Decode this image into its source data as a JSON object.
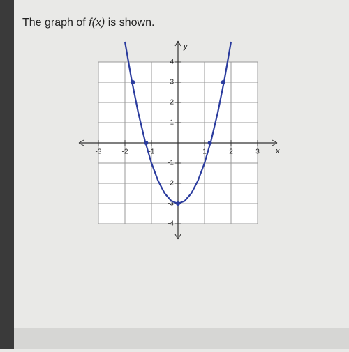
{
  "question": {
    "prefix": "The graph of ",
    "function": "f(x)",
    "suffix": " is shown."
  },
  "chart_data": {
    "type": "line",
    "x_label": "x",
    "y_label": "y",
    "xlim": [
      -3,
      3
    ],
    "ylim": [
      -4,
      4
    ],
    "xticks": [
      -3,
      -2,
      -1,
      1,
      2,
      3
    ],
    "yticks": [
      -4,
      -3,
      -2,
      -1,
      1,
      2,
      3,
      4
    ],
    "grid": true,
    "series": [
      {
        "color": "#2b3c9e",
        "x": [
          -2,
          -1.75,
          -1.5,
          -1.25,
          -1,
          -0.75,
          -0.5,
          -0.25,
          0,
          0.25,
          0.5,
          0.75,
          1,
          1.25,
          1.5,
          1.75,
          2
        ],
        "values": [
          5,
          3.125,
          1.5,
          0.125,
          -1,
          -1.875,
          -2.5,
          -2.875,
          -3,
          -2.875,
          -2.5,
          -1.875,
          -1,
          0.125,
          1.5,
          3.125,
          5
        ]
      },
      {
        "color": "#2b3c9e",
        "markers_only": true,
        "x": [
          -1.7,
          -1.2,
          0,
          1.2,
          1.7
        ],
        "values": [
          3,
          0,
          -3,
          0,
          3
        ]
      }
    ]
  }
}
